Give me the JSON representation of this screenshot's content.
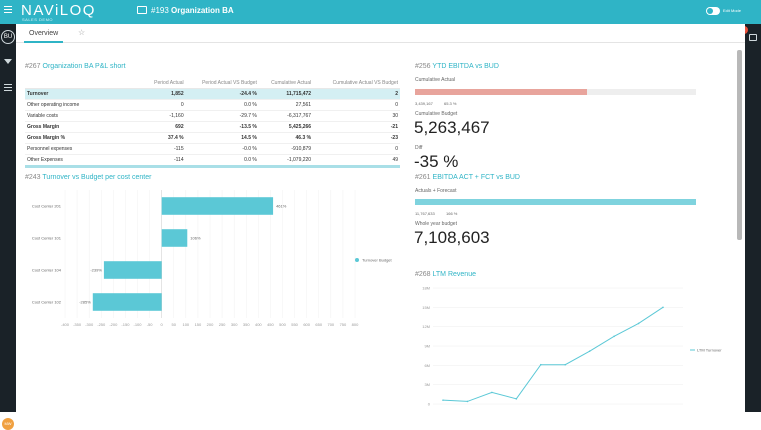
{
  "app": {
    "logo": "NAViLOQ",
    "logo_sub": "SALES DEMO",
    "title_num": "#193",
    "title_name": "Organization BA",
    "toggle_label": "Edit Mode",
    "avatar": "MW",
    "notif_count": "1"
  },
  "sidebar": {
    "badge": "BU"
  },
  "tabs": {
    "overview": "Overview"
  },
  "pl": {
    "num": "#267",
    "title": "Organization BA P&L short",
    "headers": [
      "",
      "Period Actual",
      "Period Actual VS Budget",
      "Cumulative Actual",
      "Cumulative Actual VS Budget"
    ],
    "rows": [
      {
        "label": "Turnover",
        "c1": "1,852",
        "c2": "-24.4 %",
        "c3": "11,715,472",
        "c4": "2",
        "style": "first"
      },
      {
        "label": "Other operating income",
        "c1": "0",
        "c2": "0.0 %",
        "c3": "27,561",
        "c4": "0",
        "style": ""
      },
      {
        "label": "Variable costs",
        "c1": "-1,160",
        "c2": "-29.7 %",
        "c3": "-6,317,767",
        "c4": "30",
        "style": ""
      },
      {
        "label": "Gross Margin",
        "c1": "692",
        "c2": "-13.5 %",
        "c3": "5,425,266",
        "c4": "-21",
        "style": "bold"
      },
      {
        "label": "Gross Margin %",
        "c1": "37.4 %",
        "c2": "14.5 %",
        "c3": "46.3 %",
        "c4": "-23",
        "style": "bold"
      },
      {
        "label": "Personnel expenses",
        "c1": "-115",
        "c2": "-0.0 %",
        "c3": "-910,879",
        "c4": "0",
        "style": ""
      },
      {
        "label": "Other Expenses",
        "c1": "-114",
        "c2": "0.0 %",
        "c3": "-1,079,220",
        "c4": "49",
        "style": ""
      }
    ]
  },
  "turnover_chart": {
    "num": "#243",
    "title": "Turnover vs Budget per cost center",
    "chart_data": {
      "type": "bar",
      "orientation": "horizontal",
      "categories": [
        "Cost Center 201",
        "Cost Center 101",
        "Cost Center 104",
        "Cost Center 102"
      ],
      "values": [
        461,
        106,
        -239,
        -285
      ],
      "data_labels": [
        "461%",
        "106%",
        "-239%",
        "-285%"
      ],
      "series": [
        {
          "name": "Turnover Budget",
          "values": [
            461,
            106,
            -239,
            -285
          ]
        }
      ],
      "xticks": [
        "-400",
        "-350",
        "-300",
        "-250",
        "-200",
        "-150",
        "-100",
        "-50",
        "0",
        "50",
        "100",
        "150",
        "200",
        "250",
        "300",
        "350",
        "400",
        "450",
        "500",
        "550",
        "600",
        "650",
        "700",
        "750",
        "800"
      ],
      "xlim": [
        -400,
        800
      ],
      "legend": "right",
      "color": "#5bc8d6"
    }
  },
  "ytd": {
    "num": "#256",
    "title": "YTD EBITDA vs BUD",
    "cum_actual_label": "Cumulative Actual",
    "cum_actual_value": "3,439,167",
    "cum_actual_pct": "65.3 %",
    "cum_actual_fill": 0.653,
    "cum_budget_label": "Cumulative Budget",
    "cum_budget_value": "5,263,467",
    "diff_label": "Diff",
    "diff_value": "-35 %"
  },
  "ebitda": {
    "num": "#261",
    "title": "EBITDA ACT + FCT vs BUD",
    "act_label": "Actuals + Forecast",
    "act_value": "11,767,633",
    "act_pct": "166 %",
    "act_fill": 1.0,
    "whole_label": "Whole year budget",
    "whole_value": "7,108,603"
  },
  "ltm": {
    "num": "#268",
    "title": "LTM Revenue",
    "chart_data": {
      "type": "line",
      "series": [
        {
          "name": "LTM Turnover",
          "values": [
            0.6,
            0.4,
            1.8,
            0.8,
            6.1,
            6.1,
            8.2,
            10.5,
            12.5,
            15.0
          ]
        }
      ],
      "yticks": [
        "0",
        "3M",
        "6M",
        "9M",
        "12M",
        "15M",
        "18M"
      ],
      "ylim": [
        0,
        18
      ],
      "legend": "right",
      "color": "#5bc8d6"
    }
  }
}
